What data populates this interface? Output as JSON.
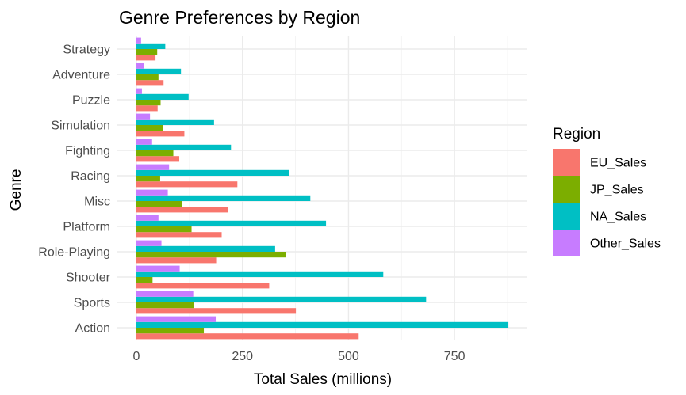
{
  "chart_data": {
    "type": "bar",
    "orientation": "horizontal",
    "title": "Genre Preferences by Region",
    "xlabel": "Total Sales (millions)",
    "ylabel": "Genre",
    "xlim": [
      0,
      900
    ],
    "x_ticks": [
      0,
      250,
      500,
      750
    ],
    "grid": true,
    "legend": {
      "title": "Region",
      "position": "right"
    },
    "categories": [
      "Action",
      "Sports",
      "Shooter",
      "Role-Playing",
      "Platform",
      "Misc",
      "Racing",
      "Fighting",
      "Simulation",
      "Puzzle",
      "Adventure",
      "Strategy"
    ],
    "series": [
      {
        "name": "EU_Sales",
        "color": "#F8766D",
        "values": [
          524,
          376,
          313,
          188,
          201,
          215,
          238,
          101,
          113,
          50,
          64,
          45
        ]
      },
      {
        "name": "JP_Sales",
        "color": "#7CAE00",
        "values": [
          159,
          135,
          38,
          352,
          130,
          107,
          56,
          87,
          63,
          57,
          52,
          49
        ]
      },
      {
        "name": "NA_Sales",
        "color": "#00BFC4",
        "values": [
          877,
          683,
          582,
          327,
          447,
          410,
          359,
          223,
          183,
          123,
          105,
          68
        ]
      },
      {
        "name": "Other_Sales",
        "color": "#C77CFF",
        "values": [
          187,
          134,
          102,
          59,
          52,
          74,
          77,
          37,
          32,
          13,
          17,
          11
        ]
      }
    ]
  }
}
